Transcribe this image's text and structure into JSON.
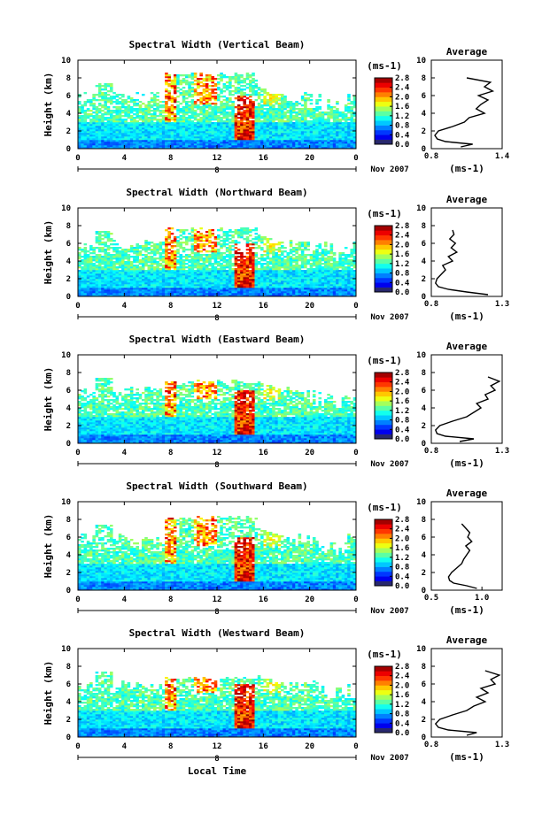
{
  "chart_data": [
    {
      "type": "heatmap",
      "title": "Spectral Width (Vertical Beam)",
      "ylabel": "Height (km)",
      "ylim": [
        0,
        10
      ],
      "xlim": [
        0,
        24
      ],
      "x_ticks": [
        "0",
        "4",
        "8",
        "12",
        "16",
        "20",
        "0"
      ],
      "y_ticks": [
        "0",
        "2",
        "4",
        "6",
        "8",
        "10"
      ],
      "date_day": "8",
      "date_month_year": "Nov 2007",
      "colorbar": {
        "unit": "(ms-1)",
        "ticks": [
          "0.0",
          "0.4",
          "0.8",
          "1.2",
          "1.6",
          "2.0",
          "2.4",
          "2.8"
        ],
        "range": [
          0,
          2.8
        ]
      },
      "average": {
        "title": "Average",
        "xlabel": "(ms-1)",
        "x_ticks": [
          "0.8",
          "1.4"
        ],
        "xlim": [
          0.8,
          1.4
        ],
        "heights": [
          0.2,
          0.5,
          0.8,
          1.1,
          1.5,
          2.0,
          2.5,
          3.0,
          3.5,
          4.0,
          4.5,
          5.0,
          5.5,
          6.0,
          6.5,
          7.0,
          7.5,
          8.0
        ],
        "values": [
          1.05,
          1.15,
          0.92,
          0.85,
          0.83,
          0.86,
          0.98,
          1.08,
          1.12,
          1.25,
          1.18,
          1.22,
          1.28,
          1.2,
          1.32,
          1.25,
          1.3,
          1.1
        ]
      }
    },
    {
      "type": "heatmap",
      "title": "Spectral Width (Northward Beam)",
      "ylabel": "Height (km)",
      "ylim": [
        0,
        10
      ],
      "xlim": [
        0,
        24
      ],
      "x_ticks": [
        "0",
        "4",
        "8",
        "12",
        "16",
        "20",
        "0"
      ],
      "y_ticks": [
        "0",
        "2",
        "4",
        "6",
        "8",
        "10"
      ],
      "date_day": "8",
      "date_month_year": "Nov 2007",
      "colorbar": {
        "unit": "(ms-1)",
        "ticks": [
          "0.0",
          "0.4",
          "0.8",
          "1.2",
          "1.6",
          "2.0",
          "2.4",
          "2.8"
        ],
        "range": [
          0,
          2.8
        ]
      },
      "average": {
        "title": "Average",
        "xlabel": "(ms-1)",
        "x_ticks": [
          "0.8",
          "1.3"
        ],
        "xlim": [
          0.8,
          1.3
        ],
        "heights": [
          0.2,
          0.5,
          0.8,
          1.1,
          1.5,
          2.0,
          2.5,
          3.0,
          3.5,
          4.0,
          4.5,
          5.0,
          5.5,
          6.0,
          6.5,
          7.0,
          7.5
        ],
        "values": [
          1.2,
          1.05,
          0.92,
          0.85,
          0.83,
          0.84,
          0.87,
          0.9,
          0.88,
          0.95,
          0.92,
          0.98,
          0.94,
          0.97,
          0.93,
          0.96,
          0.95
        ]
      }
    },
    {
      "type": "heatmap",
      "title": "Spectral Width (Eastward Beam)",
      "ylabel": "Height (km)",
      "ylim": [
        0,
        10
      ],
      "xlim": [
        0,
        24
      ],
      "x_ticks": [
        "0",
        "4",
        "8",
        "12",
        "16",
        "20",
        "0"
      ],
      "y_ticks": [
        "0",
        "2",
        "4",
        "6",
        "8",
        "10"
      ],
      "date_day": "8",
      "date_month_year": "Nov 2007",
      "colorbar": {
        "unit": "(ms-1)",
        "ticks": [
          "0.0",
          "0.4",
          "0.8",
          "1.2",
          "1.6",
          "2.0",
          "2.4",
          "2.8"
        ],
        "range": [
          0,
          2.8
        ]
      },
      "average": {
        "title": "Average",
        "xlabel": "(ms-1)",
        "x_ticks": [
          "0.8",
          "1.3"
        ],
        "xlim": [
          0.8,
          1.3
        ],
        "heights": [
          0.2,
          0.5,
          0.8,
          1.1,
          1.5,
          2.0,
          2.5,
          3.0,
          3.5,
          4.0,
          4.5,
          5.0,
          5.5,
          6.0,
          6.5,
          7.0,
          7.5
        ],
        "values": [
          1.0,
          1.1,
          0.9,
          0.84,
          0.83,
          0.86,
          0.95,
          1.05,
          1.1,
          1.15,
          1.12,
          1.2,
          1.18,
          1.25,
          1.22,
          1.28,
          1.2
        ]
      }
    },
    {
      "type": "heatmap",
      "title": "Spectral Width (Southward Beam)",
      "ylabel": "Height (km)",
      "ylim": [
        0,
        10
      ],
      "xlim": [
        0,
        24
      ],
      "x_ticks": [
        "0",
        "4",
        "8",
        "12",
        "16",
        "20",
        "0"
      ],
      "y_ticks": [
        "0",
        "2",
        "4",
        "6",
        "8",
        "10"
      ],
      "date_day": "8",
      "date_month_year": "Nov 2007",
      "colorbar": {
        "unit": "(ms-1)",
        "ticks": [
          "0.0",
          "0.4",
          "0.8",
          "1.2",
          "1.6",
          "2.0",
          "2.4",
          "2.8"
        ],
        "range": [
          0,
          2.8
        ]
      },
      "average": {
        "title": "Average",
        "xlabel": "(ms-1)",
        "x_ticks": [
          "0.5",
          "1.0"
        ],
        "xlim": [
          0.5,
          1.2
        ],
        "heights": [
          0.2,
          0.5,
          0.8,
          1.1,
          1.5,
          2.0,
          2.5,
          3.0,
          3.5,
          4.0,
          4.5,
          5.0,
          5.5,
          6.0,
          6.5,
          7.0,
          7.5
        ],
        "values": [
          0.95,
          0.85,
          0.72,
          0.68,
          0.67,
          0.7,
          0.75,
          0.8,
          0.82,
          0.85,
          0.88,
          0.84,
          0.9,
          0.86,
          0.88,
          0.84,
          0.8
        ]
      }
    },
    {
      "type": "heatmap",
      "title": "Spectral Width (Westward Beam)",
      "ylabel": "Height (km)",
      "xlabel": "Local Time",
      "ylim": [
        0,
        10
      ],
      "xlim": [
        0,
        24
      ],
      "x_ticks": [
        "0",
        "4",
        "8",
        "12",
        "16",
        "20",
        "0"
      ],
      "y_ticks": [
        "0",
        "2",
        "4",
        "6",
        "8",
        "10"
      ],
      "date_day": "8",
      "date_month_year": "Nov 2007",
      "colorbar": {
        "unit": "(ms-1)",
        "ticks": [
          "0.0",
          "0.4",
          "0.8",
          "1.2",
          "1.6",
          "2.0",
          "2.4",
          "2.8"
        ],
        "range": [
          0,
          2.8
        ]
      },
      "average": {
        "title": "Average",
        "xlabel": "(ms-1)",
        "x_ticks": [
          "0.8",
          "1.3"
        ],
        "xlim": [
          0.8,
          1.3
        ],
        "heights": [
          0.2,
          0.5,
          0.8,
          1.1,
          1.5,
          2.0,
          2.5,
          3.0,
          3.5,
          4.0,
          4.5,
          5.0,
          5.5,
          6.0,
          6.5,
          7.0,
          7.5
        ],
        "values": [
          1.05,
          1.12,
          0.92,
          0.85,
          0.83,
          0.86,
          0.95,
          1.05,
          1.1,
          1.18,
          1.12,
          1.2,
          1.15,
          1.25,
          1.22,
          1.28,
          1.18
        ]
      }
    }
  ]
}
